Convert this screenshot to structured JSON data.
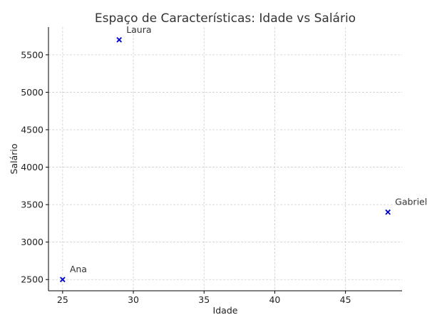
{
  "chart_data": {
    "type": "scatter",
    "title": "Espaço de Características: Idade vs Salário",
    "xlabel": "Idade",
    "ylabel": "Salário",
    "xlim": [
      24,
      49
    ],
    "ylim": [
      2350,
      5870
    ],
    "xticks": [
      25,
      30,
      35,
      40,
      45
    ],
    "yticks": [
      2500,
      3000,
      3500,
      4000,
      4500,
      5000,
      5500
    ],
    "grid": true,
    "marker": "x",
    "marker_color": "#0000cc",
    "points": [
      {
        "label": "Ana",
        "x": 25,
        "y": 2500
      },
      {
        "label": "Laura",
        "x": 29,
        "y": 5700
      },
      {
        "label": "Gabriel",
        "x": 48,
        "y": 3400
      }
    ]
  }
}
